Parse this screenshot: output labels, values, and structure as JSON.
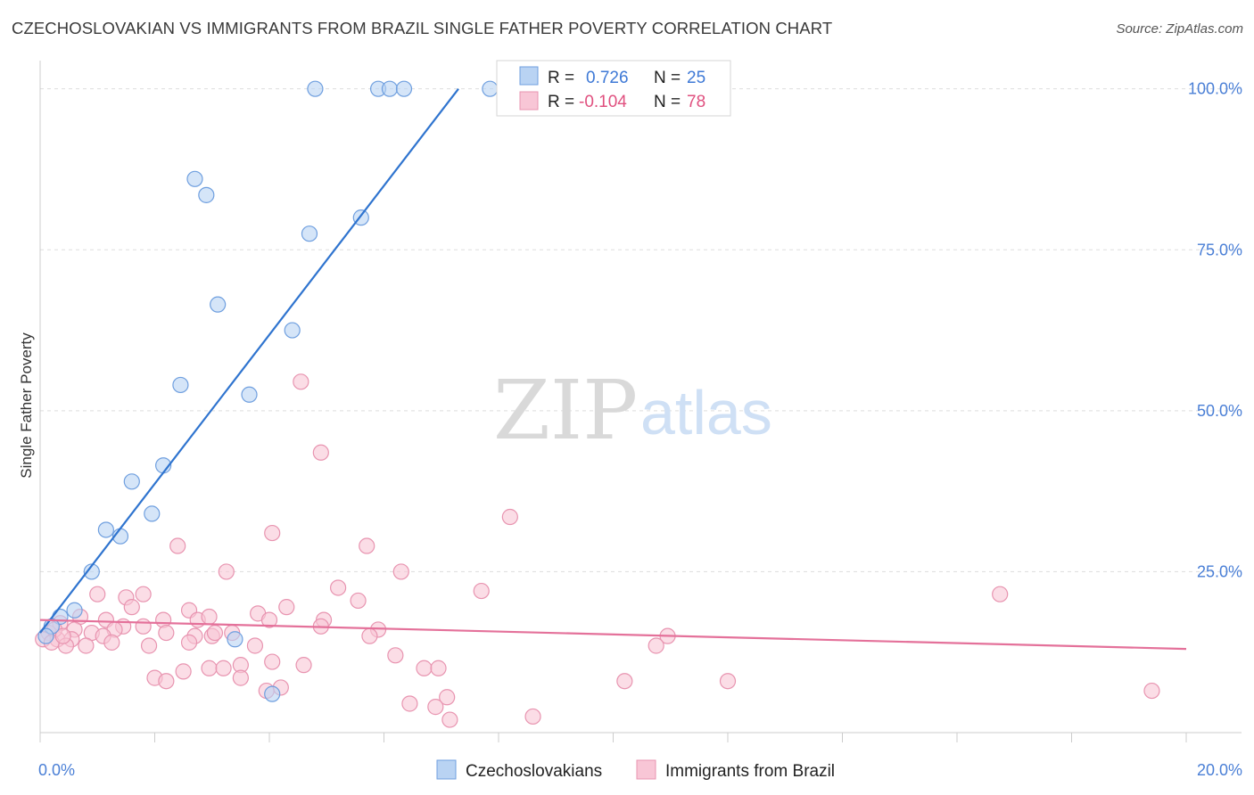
{
  "header": {
    "title": "CZECHOSLOVAKIAN VS IMMIGRANTS FROM BRAZIL SINGLE FATHER POVERTY CORRELATION CHART",
    "source": "Source: ZipAtlas.com"
  },
  "watermark": {
    "zip": "ZIP",
    "atlas": "atlas"
  },
  "colors": {
    "blue_fill": "#b9d3f3",
    "blue_stroke": "#6f9fdf",
    "blue_line": "#2f74cf",
    "pink_fill": "#f8c6d6",
    "pink_stroke": "#e894b0",
    "pink_line": "#e4719a",
    "grid": "#dddddd",
    "tick_text": "#4a7fd6"
  },
  "legend": {
    "r_label": "R =",
    "n_label": "N =",
    "series": [
      {
        "r": "0.726",
        "n": "25"
      },
      {
        "r": "-0.104",
        "n": "78"
      }
    ]
  },
  "chart_data": {
    "type": "scatter",
    "title": "CZECHOSLOVAKIAN VS IMMIGRANTS FROM BRAZIL SINGLE FATHER POVERTY CORRELATION CHART",
    "xlabel": "",
    "ylabel": "Single Father Poverty",
    "xlim": [
      0,
      20
    ],
    "ylim": [
      0,
      103
    ],
    "x_tick_labels": [
      "0.0%",
      "20.0%"
    ],
    "y_ticks": [
      25,
      50,
      75,
      100
    ],
    "y_tick_labels": [
      "25.0%",
      "50.0%",
      "75.0%",
      "100.0%"
    ],
    "grid": true,
    "legend_position": "top-center",
    "series": [
      {
        "name": "Czechoslovakians",
        "r": 0.726,
        "n": 25,
        "trend": {
          "x": [
            0,
            7.3
          ],
          "y": [
            15.5,
            100
          ]
        },
        "points": [
          [
            4.8,
            100
          ],
          [
            5.9,
            100
          ],
          [
            6.1,
            100
          ],
          [
            6.35,
            100
          ],
          [
            7.85,
            100
          ],
          [
            2.7,
            86
          ],
          [
            2.9,
            83.5
          ],
          [
            5.6,
            80
          ],
          [
            4.7,
            77.5
          ],
          [
            3.1,
            66.5
          ],
          [
            4.4,
            62.5
          ],
          [
            2.45,
            54
          ],
          [
            3.65,
            52.5
          ],
          [
            2.15,
            41.5
          ],
          [
            1.6,
            39
          ],
          [
            1.95,
            34
          ],
          [
            1.15,
            31.5
          ],
          [
            1.4,
            30.5
          ],
          [
            0.9,
            25
          ],
          [
            0.6,
            19
          ],
          [
            0.35,
            18
          ],
          [
            0.2,
            16.5
          ],
          [
            0.1,
            15
          ],
          [
            3.4,
            14.5
          ],
          [
            4.05,
            6
          ]
        ]
      },
      {
        "name": "Immigrants from Brazil",
        "r": -0.104,
        "n": 78,
        "trend": {
          "x": [
            0,
            20
          ],
          "y": [
            17.5,
            13
          ]
        },
        "points": [
          [
            4.55,
            54.5
          ],
          [
            4.9,
            43.5
          ],
          [
            8.2,
            33.5
          ],
          [
            4.05,
            31
          ],
          [
            2.4,
            29
          ],
          [
            5.7,
            29
          ],
          [
            3.25,
            25
          ],
          [
            6.3,
            25
          ],
          [
            7.7,
            22
          ],
          [
            16.75,
            21.5
          ],
          [
            1.0,
            21.5
          ],
          [
            1.8,
            21.5
          ],
          [
            1.5,
            21
          ],
          [
            5.2,
            22.5
          ],
          [
            5.55,
            20.5
          ],
          [
            1.6,
            19.5
          ],
          [
            2.6,
            19
          ],
          [
            4.3,
            19.5
          ],
          [
            3.8,
            18.5
          ],
          [
            0.7,
            18
          ],
          [
            1.15,
            17.5
          ],
          [
            2.15,
            17.5
          ],
          [
            2.75,
            17.5
          ],
          [
            2.95,
            18
          ],
          [
            4.0,
            17.5
          ],
          [
            4.95,
            17.5
          ],
          [
            0.35,
            17
          ],
          [
            1.45,
            16.5
          ],
          [
            1.8,
            16.5
          ],
          [
            0.6,
            16
          ],
          [
            1.3,
            16
          ],
          [
            2.2,
            15.5
          ],
          [
            3.35,
            15.5
          ],
          [
            4.9,
            16.5
          ],
          [
            5.9,
            16
          ],
          [
            0.15,
            15.5
          ],
          [
            0.9,
            15.5
          ],
          [
            1.1,
            15
          ],
          [
            2.7,
            15
          ],
          [
            3.0,
            15
          ],
          [
            3.05,
            15.5
          ],
          [
            5.75,
            15
          ],
          [
            10.95,
            15
          ],
          [
            0.3,
            14.5
          ],
          [
            0.55,
            14.5
          ],
          [
            0.45,
            13.5
          ],
          [
            0.8,
            13.5
          ],
          [
            1.25,
            14
          ],
          [
            1.9,
            13.5
          ],
          [
            2.6,
            14
          ],
          [
            3.75,
            13.5
          ],
          [
            10.75,
            13.5
          ],
          [
            6.2,
            12
          ],
          [
            4.05,
            11
          ],
          [
            3.5,
            10.5
          ],
          [
            4.6,
            10.5
          ],
          [
            6.7,
            10
          ],
          [
            6.95,
            10
          ],
          [
            2.95,
            10
          ],
          [
            3.2,
            10
          ],
          [
            2.5,
            9.5
          ],
          [
            2.0,
            8.5
          ],
          [
            3.5,
            8.5
          ],
          [
            2.2,
            8
          ],
          [
            10.2,
            8
          ],
          [
            12.0,
            8
          ],
          [
            4.2,
            7
          ],
          [
            6.45,
            4.5
          ],
          [
            7.1,
            5.5
          ],
          [
            6.9,
            4
          ],
          [
            7.15,
            2
          ],
          [
            8.6,
            2.5
          ],
          [
            19.4,
            6.5
          ],
          [
            3.95,
            6.5
          ],
          [
            0.25,
            16
          ],
          [
            0.05,
            14.5
          ],
          [
            0.2,
            14
          ],
          [
            0.4,
            15
          ]
        ]
      }
    ]
  }
}
